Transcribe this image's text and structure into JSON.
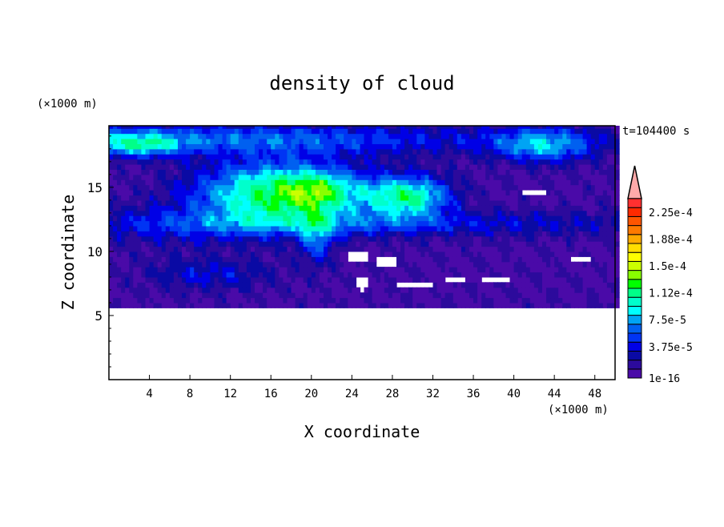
{
  "chart_data": {
    "type": "heatmap",
    "title": "density of cloud",
    "xlabel": "X coordinate",
    "ylabel": "Z coordinate",
    "x_unit": "(×1000 m)",
    "y_unit": "(×1000 m)",
    "time_label": "t=104400 s",
    "xlim": [
      0,
      50
    ],
    "ylim": [
      0,
      19.8
    ],
    "x_ticks": [
      4,
      8,
      12,
      16,
      20,
      24,
      28,
      32,
      36,
      40,
      44,
      48
    ],
    "y_ticks": [
      5,
      10,
      15
    ],
    "colorbar": {
      "labels": [
        "1e-16",
        "3.75e-5",
        "7.5e-5",
        "1.12e-4",
        "1.5e-4",
        "1.88e-4",
        "2.25e-4"
      ],
      "colors": [
        "#4a0aa8",
        "#2c0a9c",
        "#0a0aa4",
        "#0000e6",
        "#0034f4",
        "#0060f0",
        "#00a4f4",
        "#00ffff",
        "#00ffcc",
        "#00ff88",
        "#00ff00",
        "#88ff00",
        "#ccff00",
        "#ffff00",
        "#ffdd00",
        "#ffaa00",
        "#ff7a00",
        "#ff5500",
        "#ff2a00",
        "#ff3030"
      ],
      "over_color": "#ffaaaa"
    }
  }
}
